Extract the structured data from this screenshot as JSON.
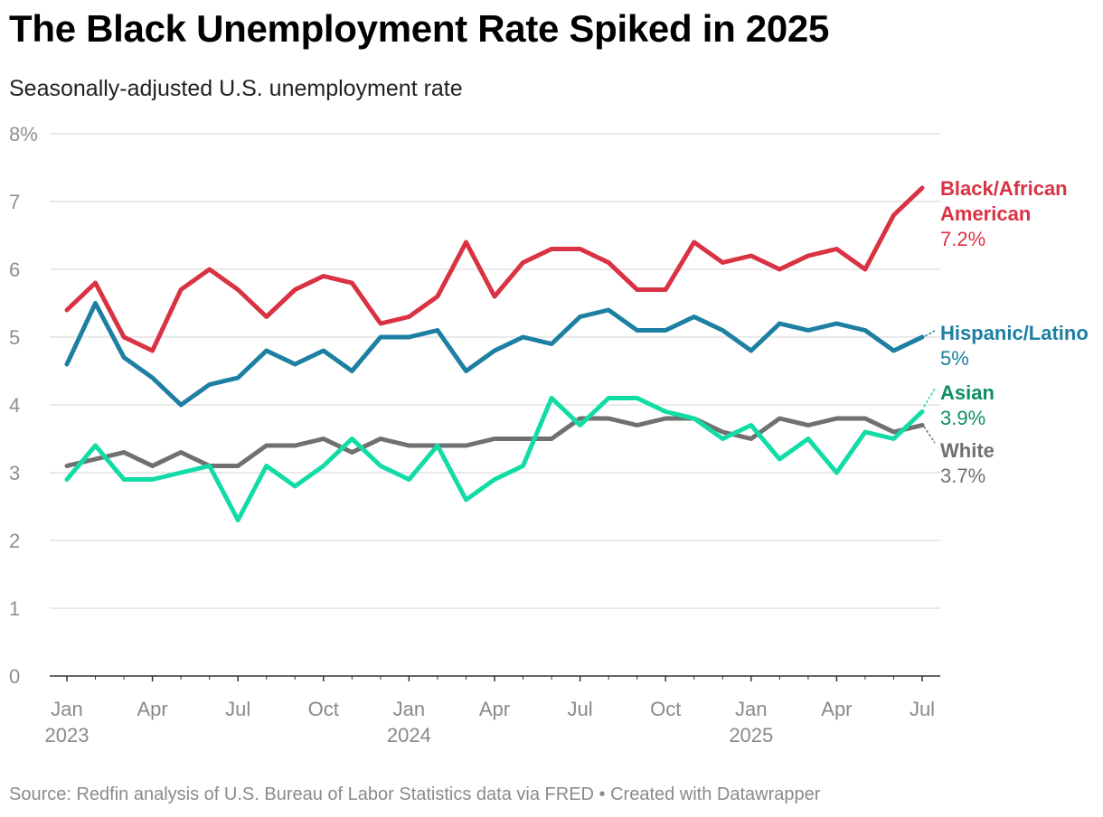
{
  "title": "The Black Unemployment Rate Spiked in 2025",
  "subtitle": "Seasonally-adjusted U.S. unemployment rate",
  "source": "Source: Redfin analysis of U.S. Bureau of Labor Statistics data via FRED • Created with Datawrapper",
  "chart_data": {
    "type": "line",
    "ylim": [
      0,
      8
    ],
    "y_ticks": [
      "0",
      "1",
      "2",
      "3",
      "4",
      "5",
      "6",
      "7",
      "8%"
    ],
    "x_ticks": [
      {
        "month": "Jan",
        "year": "2023",
        "index": 0
      },
      {
        "month": "Apr",
        "year": "",
        "index": 3
      },
      {
        "month": "Jul",
        "year": "",
        "index": 6
      },
      {
        "month": "Oct",
        "year": "",
        "index": 9
      },
      {
        "month": "Jan",
        "year": "2024",
        "index": 12
      },
      {
        "month": "Apr",
        "year": "",
        "index": 15
      },
      {
        "month": "Jul",
        "year": "",
        "index": 18
      },
      {
        "month": "Oct",
        "year": "",
        "index": 21
      },
      {
        "month": "Jan",
        "year": "2025",
        "index": 24
      },
      {
        "month": "Apr",
        "year": "",
        "index": 27
      },
      {
        "month": "Jul",
        "year": "",
        "index": 30
      }
    ],
    "x": [
      "2023-01",
      "2023-02",
      "2023-03",
      "2023-04",
      "2023-05",
      "2023-06",
      "2023-07",
      "2023-08",
      "2023-09",
      "2023-10",
      "2023-11",
      "2023-12",
      "2024-01",
      "2024-02",
      "2024-03",
      "2024-04",
      "2024-05",
      "2024-06",
      "2024-07",
      "2024-08",
      "2024-09",
      "2024-10",
      "2024-11",
      "2024-12",
      "2025-01",
      "2025-02",
      "2025-03",
      "2025-04",
      "2025-05",
      "2025-06",
      "2025-07"
    ],
    "grid": true,
    "series": [
      {
        "name": "Black/African American",
        "label_lines": [
          "Black/African",
          "American"
        ],
        "value_label": "7.2%",
        "color": "#d93242",
        "values": [
          5.4,
          5.8,
          5.0,
          4.8,
          5.7,
          6.0,
          5.7,
          5.3,
          5.7,
          5.9,
          5.8,
          5.2,
          5.3,
          5.6,
          6.4,
          5.6,
          6.1,
          6.3,
          6.3,
          6.1,
          5.7,
          5.7,
          6.4,
          6.1,
          6.2,
          6.0,
          6.2,
          6.3,
          6.0,
          6.8,
          7.2
        ]
      },
      {
        "name": "Hispanic/Latino",
        "label_lines": [
          "Hispanic/Latino"
        ],
        "value_label": "5%",
        "color": "#1d7fa2",
        "values": [
          4.6,
          5.5,
          4.7,
          4.4,
          4.0,
          4.3,
          4.4,
          4.8,
          4.6,
          4.8,
          4.5,
          5.0,
          5.0,
          5.1,
          4.5,
          4.8,
          5.0,
          4.9,
          5.3,
          5.4,
          5.1,
          5.1,
          5.3,
          5.1,
          4.8,
          5.2,
          5.1,
          5.2,
          5.1,
          4.8,
          5.0
        ]
      },
      {
        "name": "Asian",
        "label_lines": [
          "Asian"
        ],
        "value_label": "3.9%",
        "color": "#12dca6",
        "label_color": "#0c8f63",
        "values": [
          2.9,
          3.4,
          2.9,
          2.9,
          3.0,
          3.1,
          2.3,
          3.1,
          2.8,
          3.1,
          3.5,
          3.1,
          2.9,
          3.4,
          2.6,
          2.9,
          3.1,
          4.1,
          3.7,
          4.1,
          4.1,
          3.9,
          3.8,
          3.5,
          3.7,
          3.2,
          3.5,
          3.0,
          3.6,
          3.5,
          3.9
        ]
      },
      {
        "name": "White",
        "label_lines": [
          "White"
        ],
        "value_label": "3.7%",
        "color": "#707070",
        "values": [
          3.1,
          3.2,
          3.3,
          3.1,
          3.3,
          3.1,
          3.1,
          3.4,
          3.4,
          3.5,
          3.3,
          3.5,
          3.4,
          3.4,
          3.4,
          3.5,
          3.5,
          3.5,
          3.8,
          3.8,
          3.7,
          3.8,
          3.8,
          3.6,
          3.5,
          3.8,
          3.7,
          3.8,
          3.8,
          3.6,
          3.7
        ]
      }
    ]
  }
}
